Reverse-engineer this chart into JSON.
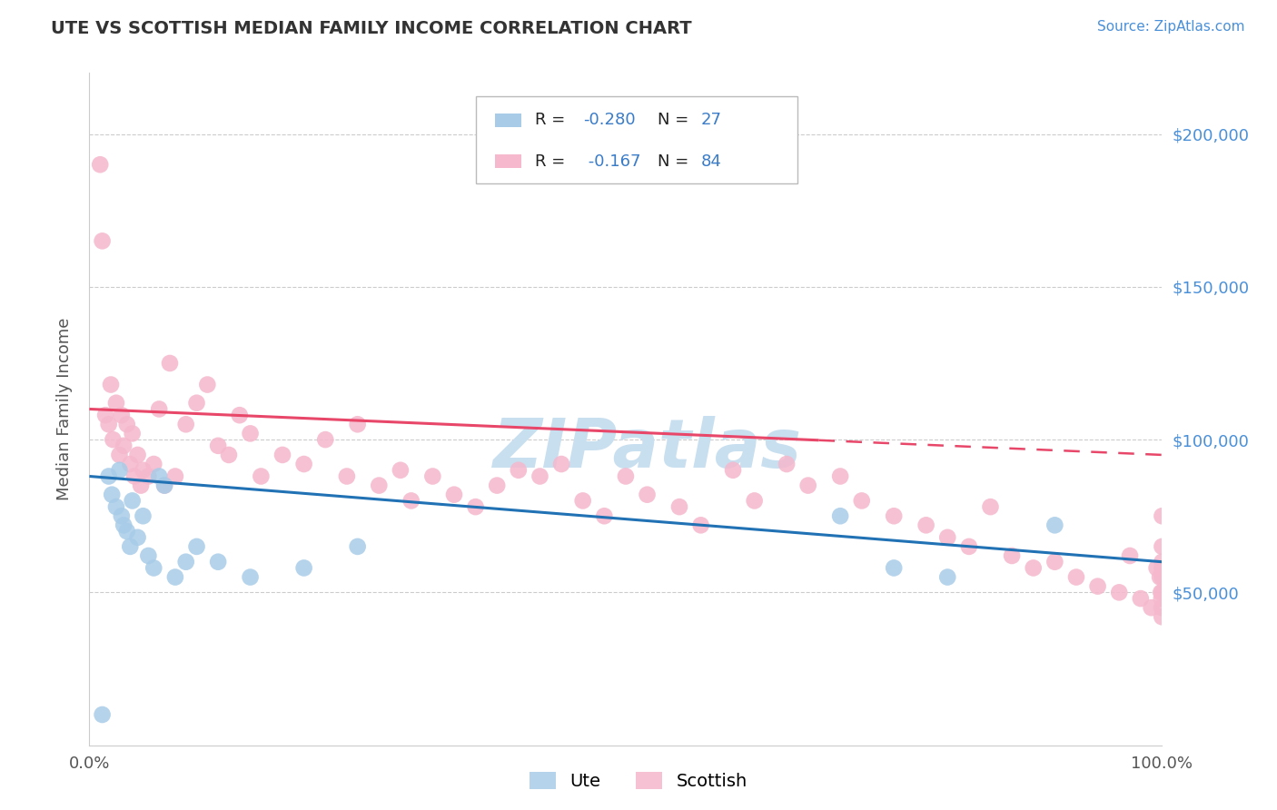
{
  "title": "UTE VS SCOTTISH MEDIAN FAMILY INCOME CORRELATION CHART",
  "source_text": "Source: ZipAtlas.com",
  "ylabel": "Median Family Income",
  "xlim": [
    0.0,
    100.0
  ],
  "ylim": [
    0,
    220000
  ],
  "background_color": "#ffffff",
  "grid_color": "#cccccc",
  "watermark_text": "ZIPatlas",
  "watermark_color": "#c8dff0",
  "ute_color": "#a8cce8",
  "scottish_color": "#f5b8cc",
  "ute_line_color": "#2171b5",
  "scottish_line_color": "#e8476a",
  "title_color": "#333333",
  "source_color": "#4a90d9",
  "right_axis_color": "#4a90d9",
  "legend_R_color": "#222222",
  "legend_val_color": "#3a7cc7",
  "legend_N_color": "#222222",
  "ute_x": [
    1.2,
    1.8,
    2.1,
    2.5,
    2.8,
    3.0,
    3.2,
    3.5,
    3.8,
    4.0,
    4.5,
    5.0,
    5.5,
    6.0,
    6.5,
    7.0,
    8.0,
    9.0,
    10.0,
    12.0,
    15.0,
    20.0,
    25.0,
    70.0,
    75.0,
    80.0,
    90.0
  ],
  "ute_y": [
    10000,
    88000,
    82000,
    78000,
    90000,
    75000,
    72000,
    70000,
    65000,
    80000,
    68000,
    75000,
    62000,
    58000,
    88000,
    85000,
    55000,
    60000,
    65000,
    60000,
    55000,
    58000,
    65000,
    75000,
    58000,
    55000,
    72000
  ],
  "scottish_x": [
    1.0,
    1.2,
    1.5,
    1.8,
    2.0,
    2.2,
    2.5,
    2.8,
    3.0,
    3.2,
    3.5,
    3.8,
    4.0,
    4.2,
    4.5,
    4.8,
    5.0,
    5.5,
    6.0,
    6.5,
    7.0,
    7.5,
    8.0,
    9.0,
    10.0,
    11.0,
    12.0,
    13.0,
    14.0,
    15.0,
    16.0,
    18.0,
    20.0,
    22.0,
    24.0,
    25.0,
    27.0,
    29.0,
    30.0,
    32.0,
    34.0,
    36.0,
    38.0,
    40.0,
    42.0,
    44.0,
    46.0,
    48.0,
    50.0,
    52.0,
    55.0,
    57.0,
    60.0,
    62.0,
    65.0,
    67.0,
    70.0,
    72.0,
    75.0,
    78.0,
    80.0,
    82.0,
    84.0,
    86.0,
    88.0,
    90.0,
    92.0,
    94.0,
    96.0,
    97.0,
    98.0,
    99.0,
    99.5,
    99.8,
    99.9,
    99.95,
    99.97,
    99.99,
    100.0,
    100.0,
    100.0,
    100.0,
    100.0,
    100.0
  ],
  "scottish_y": [
    190000,
    165000,
    108000,
    105000,
    118000,
    100000,
    112000,
    95000,
    108000,
    98000,
    105000,
    92000,
    102000,
    88000,
    95000,
    85000,
    90000,
    88000,
    92000,
    110000,
    85000,
    125000,
    88000,
    105000,
    112000,
    118000,
    98000,
    95000,
    108000,
    102000,
    88000,
    95000,
    92000,
    100000,
    88000,
    105000,
    85000,
    90000,
    80000,
    88000,
    82000,
    78000,
    85000,
    90000,
    88000,
    92000,
    80000,
    75000,
    88000,
    82000,
    78000,
    72000,
    90000,
    80000,
    92000,
    85000,
    88000,
    80000,
    75000,
    72000,
    68000,
    65000,
    78000,
    62000,
    58000,
    60000,
    55000,
    52000,
    50000,
    62000,
    48000,
    45000,
    58000,
    55000,
    50000,
    48000,
    45000,
    42000,
    50000,
    55000,
    75000,
    65000,
    60000,
    58000
  ]
}
